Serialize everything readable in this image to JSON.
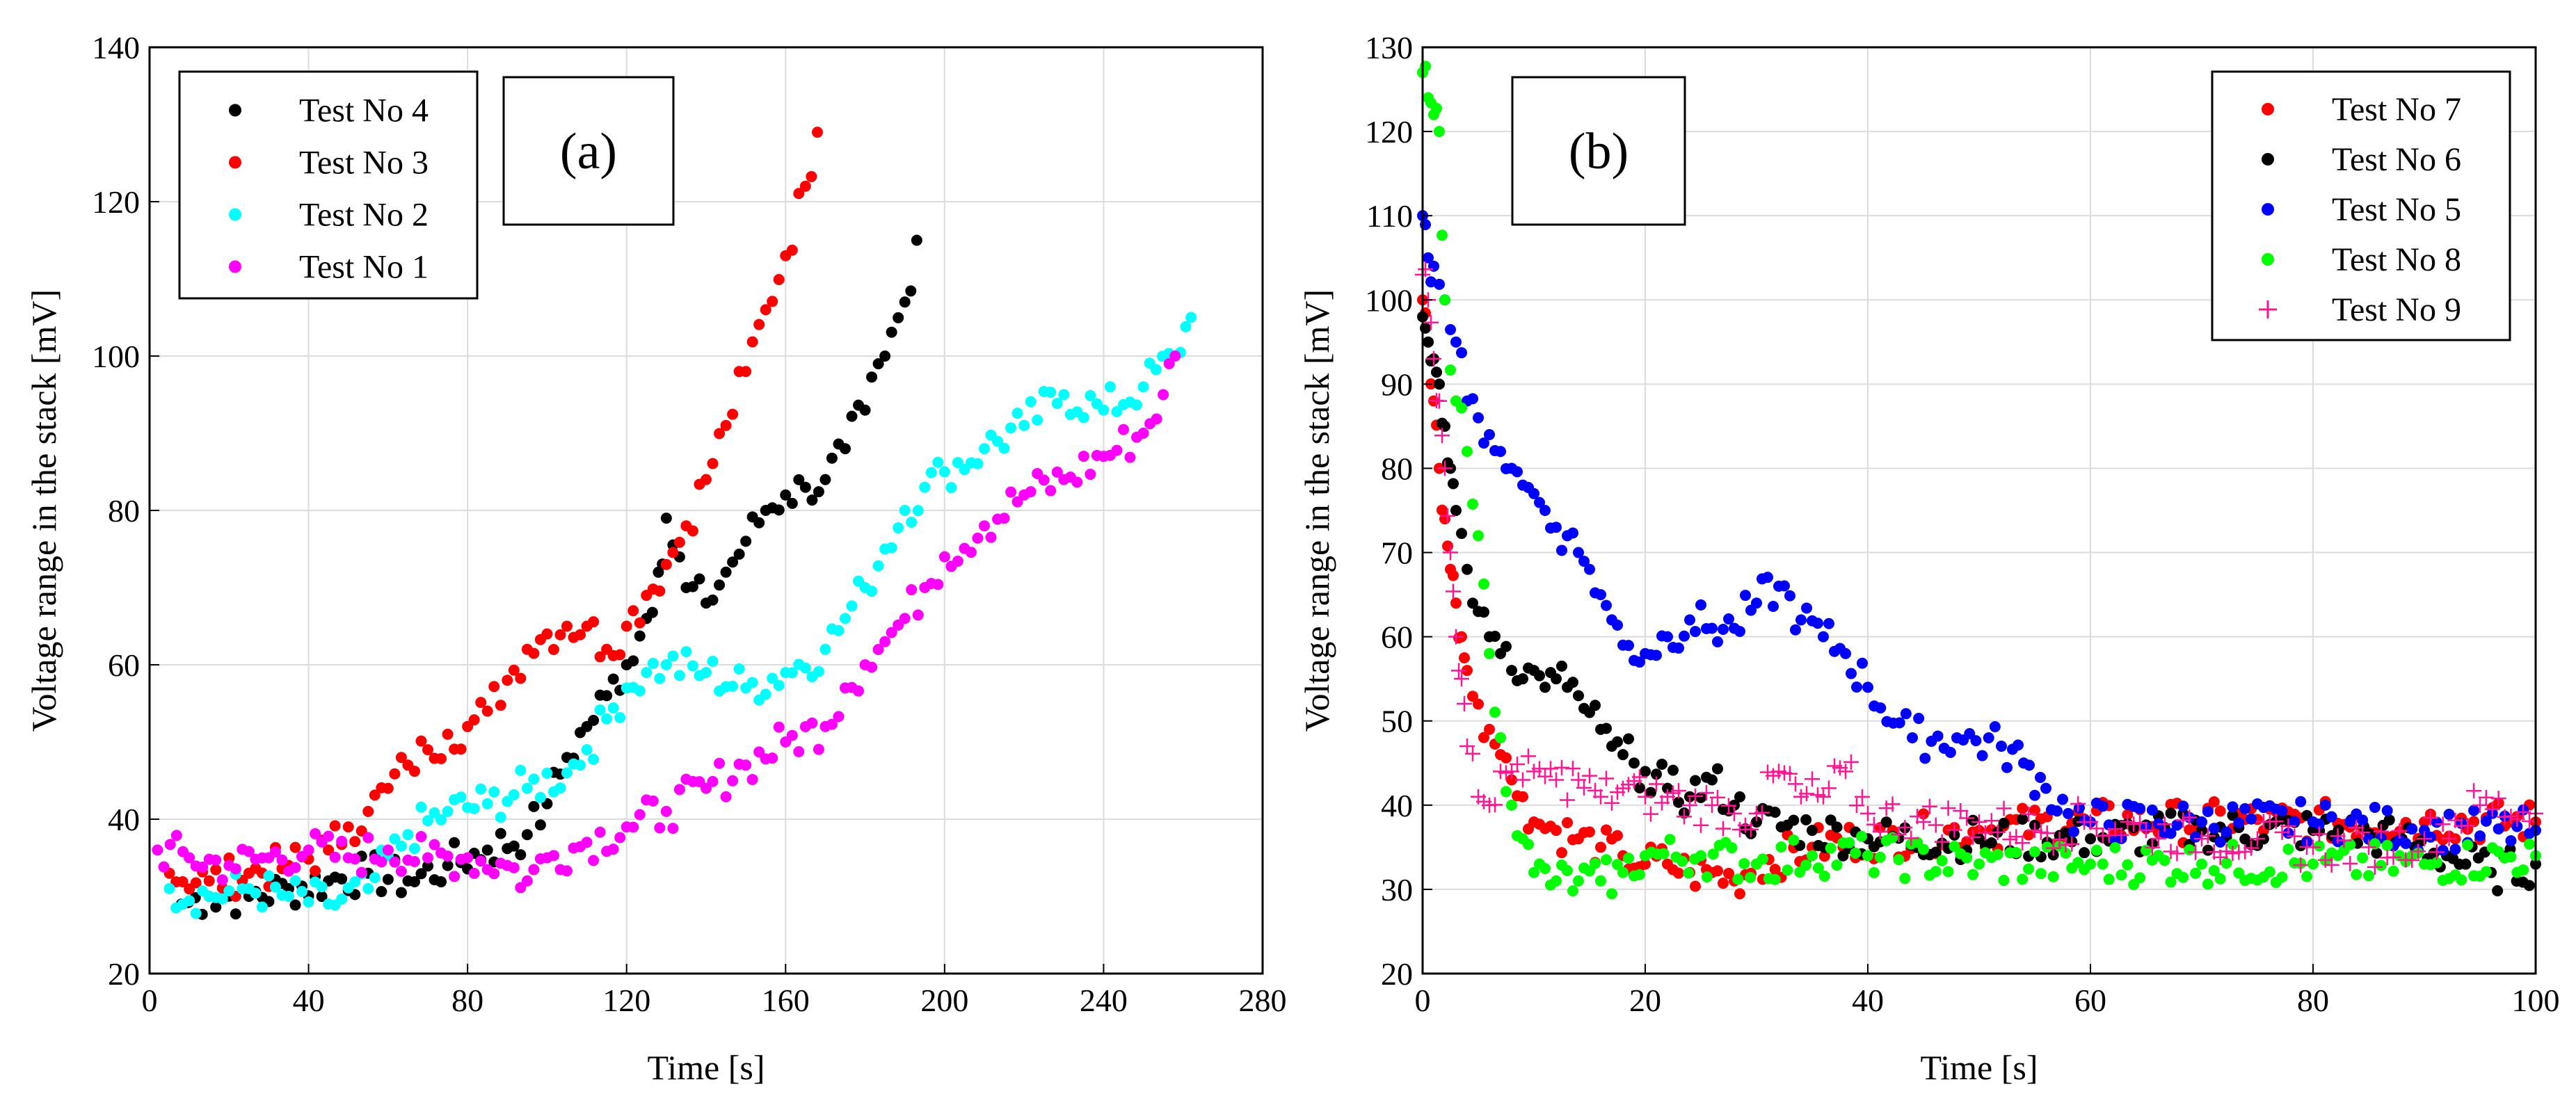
{
  "chart_data": [
    {
      "type": "scatter",
      "panel_label": "(a)",
      "xlabel": "Time [s]",
      "ylabel": "Voltage range in the stack [mV]",
      "xlim": [
        0,
        280
      ],
      "ylim": [
        20,
        140
      ],
      "xticks": [
        0,
        40,
        80,
        120,
        160,
        200,
        240,
        280
      ],
      "yticks": [
        20,
        40,
        60,
        80,
        100,
        120,
        140
      ],
      "grid": true,
      "legend_position": "top-left",
      "series": [
        {
          "name": "Test No 4",
          "color": "#000000",
          "marker": "dot",
          "x": [
            8,
            15,
            25,
            35,
            45,
            55,
            65,
            75,
            85,
            95,
            100,
            105,
            110,
            115,
            120,
            125,
            128,
            130,
            135,
            140,
            145,
            150,
            155,
            160,
            165,
            170,
            175,
            180,
            185,
            190,
            193
          ],
          "y": [
            29,
            30,
            30,
            31,
            32,
            33,
            32,
            34,
            36,
            38,
            42,
            48,
            52,
            56,
            60,
            66,
            72,
            79,
            70,
            68,
            72,
            76,
            80,
            82,
            83,
            84,
            88,
            93,
            100,
            107,
            115
          ]
        },
        {
          "name": "Test No 3",
          "color": "#ff0000",
          "marker": "dot",
          "x": [
            5,
            15,
            25,
            35,
            45,
            50,
            55,
            60,
            65,
            70,
            75,
            80,
            85,
            90,
            95,
            100,
            105,
            110,
            115,
            120,
            125,
            130,
            135,
            140,
            145,
            150,
            155,
            160,
            165,
            168
          ],
          "y": [
            33,
            32,
            33,
            34,
            36,
            39,
            41,
            44,
            47,
            49,
            51,
            52,
            54,
            58,
            62,
            64,
            65,
            65,
            62,
            65,
            69,
            73,
            78,
            84,
            91,
            98,
            106,
            113,
            122,
            129
          ]
        },
        {
          "name": "Test No 2",
          "color": "#00ffff",
          "marker": "dot",
          "x": [
            5,
            15,
            25,
            35,
            45,
            55,
            65,
            75,
            85,
            95,
            105,
            110,
            115,
            120,
            125,
            130,
            140,
            150,
            160,
            170,
            175,
            180,
            185,
            190,
            195,
            200,
            210,
            220,
            230,
            240,
            250,
            258,
            262
          ],
          "y": [
            31,
            30,
            31,
            30,
            29,
            31,
            38,
            41,
            42,
            44,
            46,
            49,
            53,
            57,
            59,
            60,
            59,
            57,
            59,
            62,
            66,
            70,
            75,
            80,
            83,
            85,
            88,
            91,
            95,
            93,
            96,
            100,
            105
          ]
        },
        {
          "name": "Test No 1",
          "color": "#ff00ff",
          "marker": "dot",
          "x": [
            2,
            10,
            20,
            30,
            40,
            50,
            60,
            70,
            80,
            90,
            95,
            100,
            110,
            120,
            130,
            140,
            150,
            160,
            170,
            175,
            180,
            185,
            190,
            195,
            200,
            210,
            220,
            230,
            240,
            250,
            255,
            258
          ],
          "y": [
            36,
            35,
            34,
            35,
            36,
            35,
            36,
            35,
            35,
            34,
            32,
            35,
            37,
            39,
            41,
            44,
            47,
            50,
            52,
            57,
            60,
            63,
            66,
            70,
            74,
            78,
            82,
            84,
            87,
            90,
            95,
            100
          ]
        }
      ]
    },
    {
      "type": "scatter",
      "panel_label": "(b)",
      "xlabel": "Time [s]",
      "ylabel": "Voltage range in the stack [mV]",
      "xlim": [
        0,
        100
      ],
      "ylim": [
        20,
        130
      ],
      "xticks": [
        0,
        20,
        40,
        60,
        80,
        100
      ],
      "yticks": [
        20,
        30,
        40,
        50,
        60,
        70,
        80,
        90,
        100,
        110,
        120,
        130
      ],
      "grid": true,
      "legend_position": "top-right",
      "series": [
        {
          "name": "Test No 7",
          "color": "#ff0000",
          "marker": "dot",
          "x": [
            0,
            0.5,
            1,
            1.5,
            2,
            2.5,
            3,
            3.5,
            4,
            5,
            6,
            7,
            8,
            9,
            10,
            12,
            14,
            16,
            18,
            20,
            22,
            24,
            26,
            28,
            30,
            35,
            40,
            50,
            60,
            70,
            80,
            90,
            100
          ],
          "y": [
            100,
            95,
            88,
            80,
            74,
            68,
            64,
            60,
            56,
            52,
            49,
            46,
            43,
            41,
            38,
            37,
            36,
            35,
            34,
            33,
            33,
            32,
            32,
            31,
            33,
            35,
            36,
            37,
            38,
            38,
            38,
            38,
            38
          ]
        },
        {
          "name": "Test No 6",
          "color": "#000000",
          "marker": "dot",
          "x": [
            0,
            0.5,
            1,
            1.5,
            2,
            2.5,
            3,
            4,
            5,
            6,
            7,
            8,
            9,
            10,
            11,
            12,
            13,
            14,
            15,
            16,
            17,
            18,
            19,
            20,
            22,
            24,
            26,
            28,
            30,
            35,
            40,
            50,
            60,
            70,
            80,
            88,
            92,
            96,
            100
          ],
          "y": [
            98,
            95,
            93,
            90,
            85,
            80,
            75,
            68,
            63,
            60,
            58,
            56,
            55,
            56,
            54,
            55,
            54,
            53,
            51,
            49,
            47,
            46,
            45,
            44,
            42,
            41,
            43,
            40,
            38,
            37,
            36,
            36,
            36,
            37,
            37,
            36,
            34,
            32,
            33
          ]
        },
        {
          "name": "Test No 5",
          "color": "#0000ff",
          "marker": "dot",
          "x": [
            0,
            0.5,
            1,
            2,
            3,
            4,
            5,
            6,
            7,
            8,
            9,
            10,
            11,
            12,
            13,
            14,
            15,
            16,
            17,
            18,
            20,
            22,
            24,
            26,
            28,
            30,
            32,
            34,
            36,
            38,
            40,
            44,
            48,
            52,
            54,
            56,
            58,
            60,
            70,
            80,
            90,
            100
          ],
          "y": [
            110,
            105,
            104,
            100,
            95,
            88,
            86,
            84,
            82,
            80,
            78,
            77,
            75,
            73,
            72,
            70,
            68,
            65,
            62,
            59,
            58,
            60,
            62,
            61,
            61,
            64,
            66,
            62,
            60,
            58,
            54,
            48,
            48,
            47,
            45,
            42,
            39,
            38,
            38,
            38,
            37,
            37
          ]
        },
        {
          "name": "Test No 8",
          "color": "#00ff00",
          "marker": "dot",
          "x": [
            0,
            0.5,
            1,
            1.5,
            2,
            3,
            4,
            5,
            6,
            7,
            8,
            9,
            10,
            12,
            14,
            16,
            18,
            20,
            25,
            30,
            35,
            40,
            50,
            60,
            70,
            80,
            90,
            100
          ],
          "y": [
            127,
            124,
            122,
            120,
            100,
            88,
            82,
            72,
            58,
            48,
            40,
            36,
            32,
            31,
            31,
            31,
            32,
            34,
            34,
            33,
            34,
            34,
            33,
            33,
            33,
            33,
            33,
            34
          ]
        },
        {
          "name": "Test No 9",
          "color": "#ff1493",
          "marker": "plus",
          "x": [
            0,
            0.5,
            1,
            1.5,
            2,
            2.5,
            3,
            3.5,
            4,
            5,
            6,
            7,
            8,
            9,
            10,
            12,
            14,
            16,
            18,
            20,
            22,
            24,
            26,
            28,
            30,
            32,
            34,
            36,
            38,
            40,
            45,
            50,
            55,
            60,
            65,
            70,
            75,
            80,
            85,
            90,
            95,
            100
          ],
          "y": [
            103,
            100,
            93,
            88,
            80,
            70,
            60,
            55,
            47,
            41,
            40,
            44,
            44,
            43,
            44,
            43,
            43,
            41,
            42,
            41,
            41,
            40,
            40,
            39,
            39,
            44,
            41,
            41,
            44,
            39,
            38,
            38,
            37,
            38,
            37,
            36,
            36,
            35,
            35,
            36,
            40,
            39
          ]
        }
      ]
    }
  ]
}
